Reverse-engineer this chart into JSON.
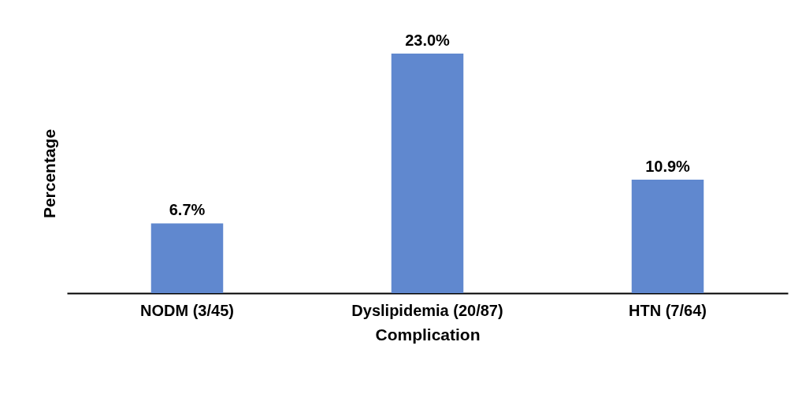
{
  "chart_data": {
    "type": "bar",
    "xlabel": "Complication",
    "ylabel": "Percentage",
    "categories": [
      "NODM (3/45)",
      "Dyslipidemia (20/87)",
      "HTN (7/64)"
    ],
    "values": [
      6.7,
      23.0,
      10.9
    ],
    "value_labels": [
      "6.7%",
      "23.0%",
      "10.9%"
    ],
    "color": "#6088cf"
  }
}
